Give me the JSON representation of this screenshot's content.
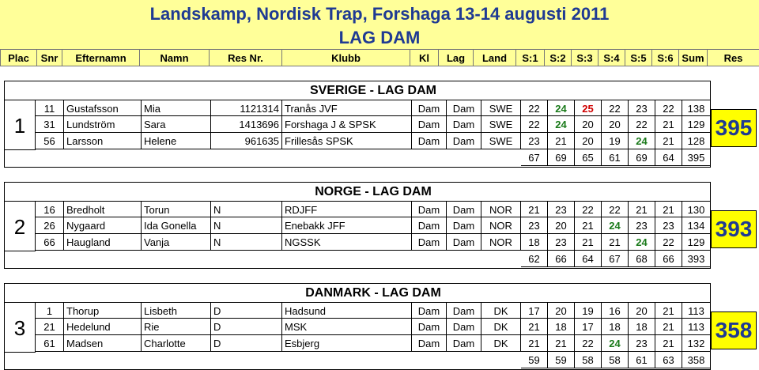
{
  "header": {
    "title": "Landskamp, Nordisk Trap, Forshaga 13-14 augusti 2011",
    "subtitle": "LAG DAM",
    "columns": [
      "Plac",
      "Snr",
      "Efternamn",
      "Namn",
      "Res Nr.",
      "Klubb",
      "Kl",
      "Lag",
      "Land",
      "S:1",
      "S:2",
      "S:3",
      "S:4",
      "S:5",
      "S:6",
      "Sum",
      "Res"
    ]
  },
  "teams": [
    {
      "place": "1",
      "name": "SVERIGE - LAG DAM",
      "total": "395",
      "rows": [
        {
          "snr": "11",
          "efternamn": "Gustafsson",
          "namn": "Mia",
          "resnr": "1121314",
          "klubb": "Tranås JVF",
          "kl": "Dam",
          "lag": "Dam",
          "land": "SWE",
          "s": [
            "22",
            "24",
            "25",
            "22",
            "23",
            "22"
          ],
          "sum": "138"
        },
        {
          "snr": "31",
          "efternamn": "Lundström",
          "namn": "Sara",
          "resnr": "1413696",
          "klubb": "Forshaga J & SPSK",
          "kl": "Dam",
          "lag": "Dam",
          "land": "SWE",
          "s": [
            "22",
            "24",
            "20",
            "20",
            "22",
            "21"
          ],
          "sum": "129"
        },
        {
          "snr": "56",
          "efternamn": "Larsson",
          "namn": "Helene",
          "resnr": "961635",
          "klubb": "Frillesås SPSK",
          "kl": "Dam",
          "lag": "Dam",
          "land": "SWE",
          "s": [
            "23",
            "21",
            "20",
            "19",
            "24",
            "21"
          ],
          "sum": "128"
        }
      ],
      "series_totals": [
        "67",
        "69",
        "65",
        "61",
        "69",
        "64"
      ],
      "sum_total": "395"
    },
    {
      "place": "2",
      "name": "NORGE - LAG DAM",
      "total": "393",
      "rows": [
        {
          "snr": "16",
          "efternamn": "Bredholt",
          "namn": "Torun",
          "resnr": "N",
          "klubb": "RDJFF",
          "kl": "Dam",
          "lag": "Dam",
          "land": "NOR",
          "s": [
            "21",
            "23",
            "22",
            "22",
            "21",
            "21"
          ],
          "sum": "130"
        },
        {
          "snr": "26",
          "efternamn": "Nygaard",
          "namn": "Ida Gonella",
          "resnr": "N",
          "klubb": "Enebakk JFF",
          "kl": "Dam",
          "lag": "Dam",
          "land": "NOR",
          "s": [
            "23",
            "20",
            "21",
            "24",
            "23",
            "23"
          ],
          "sum": "134"
        },
        {
          "snr": "66",
          "efternamn": "Haugland",
          "namn": "Vanja",
          "resnr": "N",
          "klubb": "NGSSK",
          "kl": "Dam",
          "lag": "Dam",
          "land": "NOR",
          "s": [
            "18",
            "23",
            "21",
            "21",
            "24",
            "22"
          ],
          "sum": "129"
        }
      ],
      "series_totals": [
        "62",
        "66",
        "64",
        "67",
        "68",
        "66"
      ],
      "sum_total": "393"
    },
    {
      "place": "3",
      "name": "DANMARK - LAG DAM",
      "total": "358",
      "rows": [
        {
          "snr": "1",
          "efternamn": "Thorup",
          "namn": "Lisbeth",
          "resnr": "D",
          "klubb": "Hadsund",
          "kl": "Dam",
          "lag": "Dam",
          "land": "DK",
          "s": [
            "17",
            "20",
            "19",
            "16",
            "20",
            "21"
          ],
          "sum": "113"
        },
        {
          "snr": "21",
          "efternamn": "Hedelund",
          "namn": "Rie",
          "resnr": "D",
          "klubb": "MSK",
          "kl": "Dam",
          "lag": "Dam",
          "land": "DK",
          "s": [
            "21",
            "18",
            "17",
            "18",
            "18",
            "21"
          ],
          "sum": "113"
        },
        {
          "snr": "61",
          "efternamn": "Madsen",
          "namn": "Charlotte",
          "resnr": "D",
          "klubb": "Esbjerg",
          "kl": "Dam",
          "lag": "Dam",
          "land": "DK",
          "s": [
            "21",
            "21",
            "22",
            "24",
            "23",
            "21"
          ],
          "sum": "132"
        }
      ],
      "series_totals": [
        "59",
        "59",
        "58",
        "58",
        "61",
        "63"
      ],
      "sum_total": "358"
    }
  ],
  "colors": {
    "header_bg": "#ffff99",
    "title": "#1f3a93",
    "highlight_24": "#1a7a1a",
    "highlight_25": "#d00000",
    "total_bg": "#ffff00"
  }
}
